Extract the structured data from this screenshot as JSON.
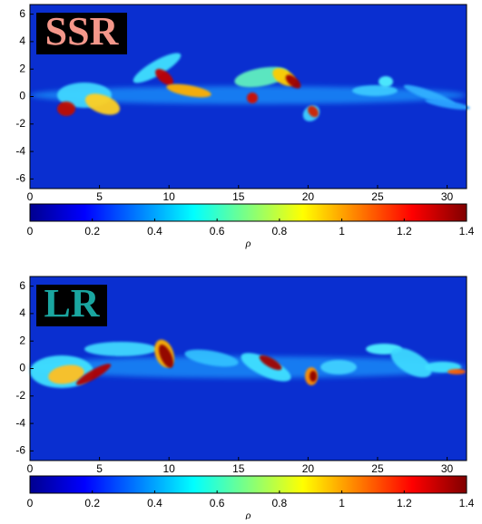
{
  "chart_data": [
    {
      "type": "heatmap",
      "label": "SSR",
      "label_color": "#f4978a",
      "xlim": [
        0,
        31.4
      ],
      "xticks": [
        0,
        5,
        10,
        15,
        20,
        25,
        30
      ],
      "ylim": [
        -6.7,
        6.7
      ],
      "yticks": [
        -6,
        -4,
        -2,
        0,
        2,
        4,
        6
      ],
      "colormap": "jet",
      "clim": [
        0,
        1.4
      ],
      "cticks": [
        0,
        0.2,
        0.4,
        0.6,
        0.8,
        1,
        1.2,
        1.4
      ],
      "clabel": "ρ"
    },
    {
      "type": "heatmap",
      "label": "LR",
      "label_color": "#1aa6a0",
      "xlim": [
        0,
        31.4
      ],
      "xticks": [
        0,
        5,
        10,
        15,
        20,
        25,
        30
      ],
      "ylim": [
        -6.7,
        6.7
      ],
      "yticks": [
        -6,
        -4,
        -2,
        0,
        2,
        4,
        6
      ],
      "colormap": "jet",
      "clim": [
        0,
        1.4
      ],
      "cticks": [
        0,
        0.2,
        0.4,
        0.6,
        0.8,
        1,
        1.2,
        1.4
      ],
      "clabel": "ρ"
    }
  ]
}
